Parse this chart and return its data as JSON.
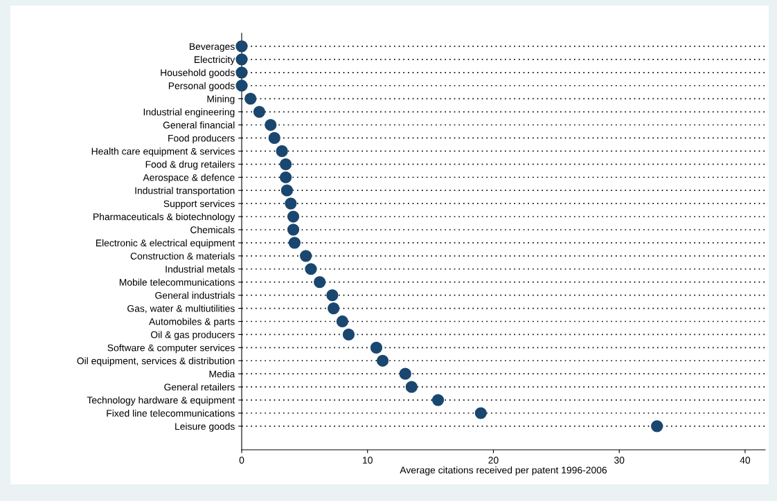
{
  "chart_data": {
    "type": "scatter",
    "orientation": "horizontal",
    "xlabel": "Average citations received per patent 1996-2006",
    "categories": [
      "Beverages",
      "Electricity",
      "Household goods",
      "Personal goods",
      "Mining",
      "Industrial engineering",
      "General financial",
      "Food producers",
      "Health care equipment & services",
      "Food & drug retailers",
      "Aerospace & defence",
      "Industrial transportation",
      "Support services",
      "Pharmaceuticals & biotechnology",
      "Chemicals",
      "Electronic & electrical equipment",
      "Construction & materials",
      "Industrial metals",
      "Mobile telecommunications",
      "General industrials",
      "Gas, water & multiutilities",
      "Automobiles & parts",
      "Oil & gas producers",
      "Software & computer services",
      "Oil equipment, services & distribution",
      "Media",
      "General retailers",
      "Technology hardware & equipment",
      "Fixed line telecommunications",
      "Leisure goods"
    ],
    "values": [
      0,
      0,
      0,
      0,
      0.7,
      1.4,
      2.3,
      2.6,
      3.2,
      3.5,
      3.5,
      3.6,
      3.9,
      4.1,
      4.1,
      4.2,
      5.1,
      5.5,
      6.2,
      7.2,
      7.3,
      8.0,
      8.5,
      10.7,
      11.2,
      13.0,
      13.5,
      15.6,
      19.0,
      33.0
    ],
    "color": "#1a476f",
    "marker": "circle",
    "grid": "y",
    "line_style": "dotted",
    "xlim": [
      0,
      41.6
    ],
    "xticks": [
      0,
      10,
      20,
      30,
      40
    ]
  }
}
